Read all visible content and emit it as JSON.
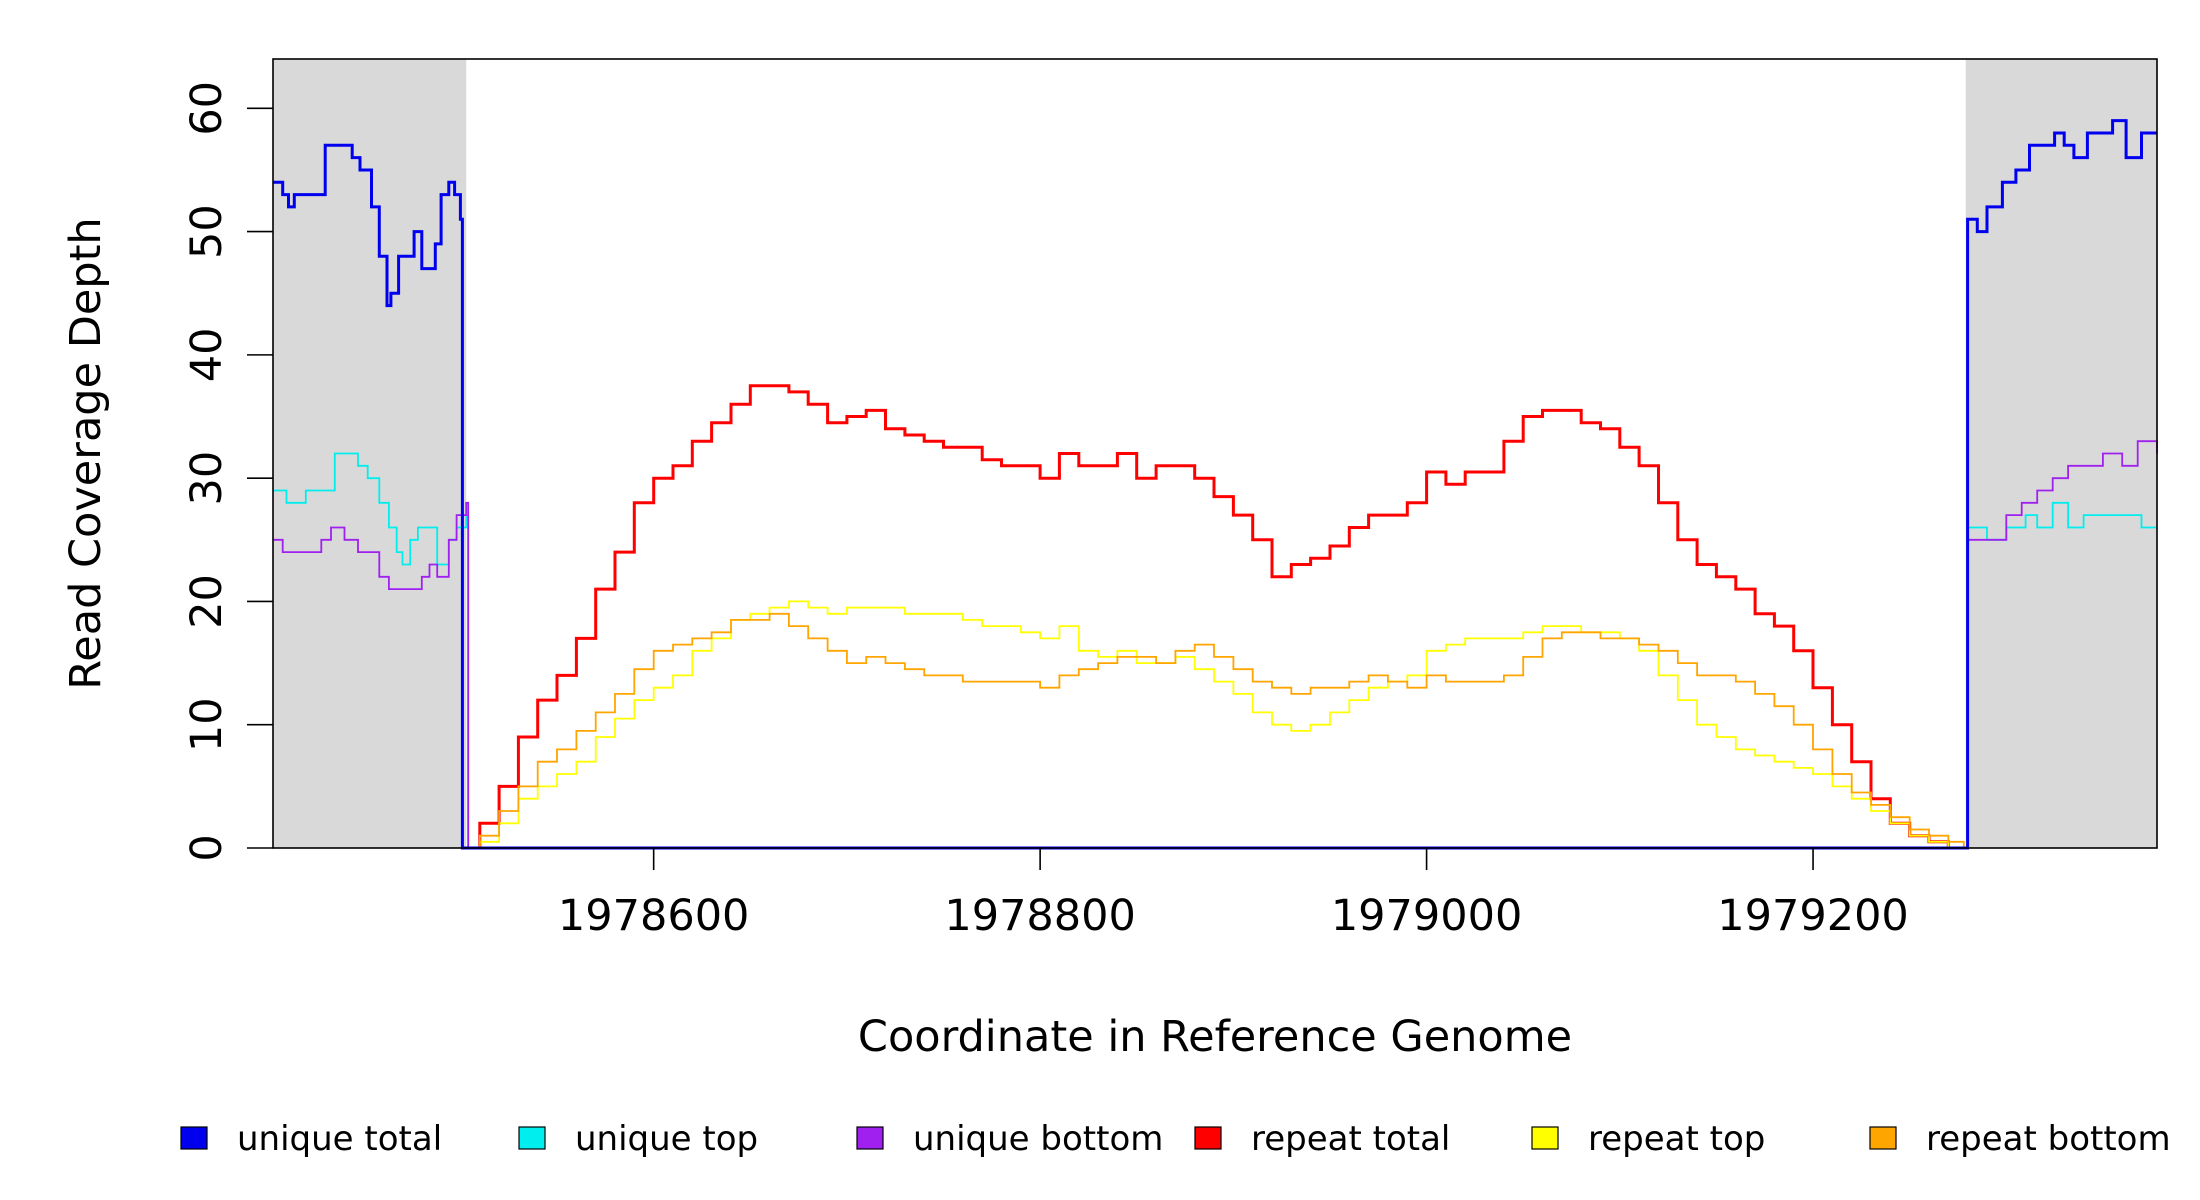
{
  "chart_data": {
    "type": "line",
    "title": "",
    "xlabel": "Coordinate in Reference Genome",
    "ylabel": "Read Coverage Depth",
    "xlim": [
      1978403,
      1979378
    ],
    "ylim": [
      0,
      64
    ],
    "x_ticks": [
      1978600,
      1978800,
      1979000,
      1979200
    ],
    "y_ticks": [
      0,
      10,
      20,
      30,
      40,
      50,
      60
    ],
    "grid": false,
    "legend_position": "bottom",
    "shaded_regions": [
      {
        "x": [
          1978403,
          1978503
        ],
        "color": "#d9d9d9"
      },
      {
        "x": [
          1979279,
          1979378
        ],
        "color": "#d9d9d9"
      }
    ],
    "series": [
      {
        "name": "unique total",
        "color": "#0000ee",
        "x": [
          1978403,
          1978408,
          1978411,
          1978414,
          1978418,
          1978425,
          1978430,
          1978438,
          1978444,
          1978448,
          1978454,
          1978458,
          1978462,
          1978464,
          1978468,
          1978471,
          1978476,
          1978480,
          1978484,
          1978487,
          1978490,
          1978494,
          1978497,
          1978500,
          1978501,
          1978503,
          1978504,
          1979279,
          1979280,
          1979285,
          1979290,
          1979298,
          1979305,
          1979312,
          1979318,
          1979325,
          1979330,
          1979335,
          1979342,
          1979348,
          1979355,
          1979362,
          1979370,
          1979378
        ],
        "y": [
          54,
          53,
          52,
          53,
          53,
          53,
          57,
          57,
          56,
          55,
          52,
          48,
          44,
          45,
          48,
          48,
          50,
          47,
          47,
          49,
          53,
          54,
          53,
          51,
          0,
          0,
          0,
          0,
          51,
          50,
          52,
          54,
          55,
          57,
          57,
          58,
          57,
          56,
          58,
          58,
          59,
          56,
          58,
          58
        ]
      },
      {
        "name": "unique top",
        "color": "#00eeee",
        "x": [
          1978403,
          1978410,
          1978420,
          1978428,
          1978435,
          1978440,
          1978447,
          1978452,
          1978458,
          1978463,
          1978467,
          1978470,
          1978474,
          1978478,
          1978484,
          1978488,
          1978494,
          1978498,
          1978501,
          1978503,
          1978504,
          1979279,
          1979280,
          1979290,
          1979300,
          1979310,
          1979316,
          1979324,
          1979332,
          1979340,
          1979350,
          1979360,
          1979370,
          1979378
        ],
        "y": [
          29,
          28,
          29,
          29,
          32,
          32,
          31,
          30,
          28,
          26,
          24,
          23,
          25,
          26,
          26,
          23,
          25,
          26,
          26,
          27,
          0,
          0,
          26,
          25,
          26,
          27,
          26,
          28,
          26,
          27,
          27,
          27,
          26,
          26
        ]
      },
      {
        "name": "unique bottom",
        "color": "#a020f0",
        "x": [
          1978403,
          1978408,
          1978412,
          1978420,
          1978428,
          1978433,
          1978440,
          1978447,
          1978452,
          1978458,
          1978463,
          1978468,
          1978474,
          1978480,
          1978484,
          1978488,
          1978494,
          1978498,
          1978501,
          1978503,
          1978504,
          1979279,
          1979280,
          1979290,
          1979300,
          1979308,
          1979316,
          1979324,
          1979332,
          1979340,
          1979350,
          1979360,
          1979368,
          1979378
        ],
        "y": [
          25,
          24,
          24,
          24,
          25,
          26,
          25,
          24,
          24,
          22,
          21,
          21,
          21,
          22,
          23,
          22,
          25,
          27,
          27,
          28,
          0,
          0,
          25,
          25,
          27,
          28,
          29,
          30,
          31,
          31,
          32,
          31,
          33,
          32
        ]
      },
      {
        "name": "repeat total",
        "color": "#ff0000",
        "x": [
          1978503,
          1978510,
          1978520,
          1978530,
          1978540,
          1978550,
          1978560,
          1978570,
          1978580,
          1978590,
          1978600,
          1978610,
          1978620,
          1978630,
          1978640,
          1978650,
          1978660,
          1978670,
          1978680,
          1978690,
          1978700,
          1978710,
          1978720,
          1978730,
          1978740,
          1978750,
          1978760,
          1978770,
          1978780,
          1978790,
          1978800,
          1978810,
          1978820,
          1978830,
          1978840,
          1978850,
          1978860,
          1978870,
          1978880,
          1978890,
          1978900,
          1978910,
          1978920,
          1978930,
          1978940,
          1978950,
          1978960,
          1978970,
          1978980,
          1978990,
          1979000,
          1979010,
          1979020,
          1979030,
          1979040,
          1979050,
          1979060,
          1979070,
          1979080,
          1979090,
          1979100,
          1979110,
          1979120,
          1979130,
          1979140,
          1979150,
          1979160,
          1979170,
          1979180,
          1979190,
          1979200,
          1979210,
          1979220,
          1979230,
          1979240,
          1979250,
          1979260,
          1979270,
          1979278,
          1979279
        ],
        "y": [
          0,
          2,
          5,
          9,
          12,
          14,
          17,
          21,
          24,
          28,
          30,
          31,
          33,
          34.5,
          36,
          37.5,
          37.5,
          37,
          36,
          34.5,
          35,
          35.5,
          34,
          33.5,
          33,
          32.5,
          32.5,
          31.5,
          31,
          31,
          30,
          32,
          31,
          31,
          32,
          30,
          31,
          31,
          30,
          28.5,
          27,
          25,
          22,
          23,
          23.5,
          24.5,
          26,
          27,
          27,
          28,
          30.5,
          29.5,
          30.5,
          30.5,
          33,
          35,
          35.5,
          35.5,
          34.5,
          34,
          32.5,
          31,
          28,
          25,
          23,
          22,
          21,
          19,
          18,
          16,
          13,
          10,
          7,
          4,
          2,
          1,
          0.5,
          0,
          0,
          0
        ]
      },
      {
        "name": "repeat top",
        "color": "#ffff00",
        "x": [
          1978503,
          1978510,
          1978520,
          1978530,
          1978540,
          1978550,
          1978560,
          1978570,
          1978580,
          1978590,
          1978600,
          1978610,
          1978620,
          1978630,
          1978640,
          1978650,
          1978660,
          1978670,
          1978680,
          1978690,
          1978700,
          1978710,
          1978720,
          1978730,
          1978740,
          1978750,
          1978760,
          1978770,
          1978780,
          1978790,
          1978800,
          1978810,
          1978820,
          1978830,
          1978840,
          1978850,
          1978860,
          1978870,
          1978880,
          1978890,
          1978900,
          1978910,
          1978920,
          1978930,
          1978940,
          1978950,
          1978960,
          1978970,
          1978980,
          1978990,
          1979000,
          1979010,
          1979020,
          1979030,
          1979040,
          1979050,
          1979060,
          1979070,
          1979080,
          1979090,
          1979100,
          1979110,
          1979120,
          1979130,
          1979140,
          1979150,
          1979160,
          1979170,
          1979180,
          1979190,
          1979200,
          1979210,
          1979220,
          1979230,
          1979240,
          1979250,
          1979260,
          1979270,
          1979278,
          1979279
        ],
        "y": [
          0,
          0.5,
          2,
          4,
          5,
          6,
          7,
          9,
          10.5,
          12,
          13,
          14,
          16,
          17,
          18.5,
          19,
          19.5,
          20,
          19.5,
          19,
          19.5,
          19.5,
          19.5,
          19,
          19,
          19,
          18.5,
          18,
          18,
          17.5,
          17,
          18,
          16,
          15.5,
          16,
          15,
          15,
          15.5,
          14.5,
          13.5,
          12.5,
          11,
          10,
          9.5,
          10,
          11,
          12,
          13,
          13.5,
          14,
          16,
          16.5,
          17,
          17,
          17,
          17.5,
          18,
          18,
          17.5,
          17.5,
          17,
          16,
          14,
          12,
          10,
          9,
          8,
          7.5,
          7,
          6.5,
          6,
          5,
          4,
          3,
          2,
          1,
          0.5,
          0,
          0,
          0
        ]
      },
      {
        "name": "repeat bottom",
        "color": "#ffa500",
        "x": [
          1978503,
          1978510,
          1978520,
          1978530,
          1978540,
          1978550,
          1978560,
          1978570,
          1978580,
          1978590,
          1978600,
          1978610,
          1978620,
          1978630,
          1978640,
          1978650,
          1978660,
          1978670,
          1978680,
          1978690,
          1978700,
          1978710,
          1978720,
          1978730,
          1978740,
          1978750,
          1978760,
          1978770,
          1978780,
          1978790,
          1978800,
          1978810,
          1978820,
          1978830,
          1978840,
          1978850,
          1978860,
          1978870,
          1978880,
          1978890,
          1978900,
          1978910,
          1978920,
          1978930,
          1978940,
          1978950,
          1978960,
          1978970,
          1978980,
          1978990,
          1979000,
          1979010,
          1979020,
          1979030,
          1979040,
          1979050,
          1979060,
          1979070,
          1979080,
          1979090,
          1979100,
          1979110,
          1979120,
          1979130,
          1979140,
          1979150,
          1979160,
          1979170,
          1979180,
          1979190,
          1979200,
          1979210,
          1979220,
          1979230,
          1979240,
          1979250,
          1979260,
          1979270,
          1979278,
          1979279
        ],
        "y": [
          0,
          1,
          3,
          5,
          7,
          8,
          9.5,
          11,
          12.5,
          14.5,
          16,
          16.5,
          17,
          17.5,
          18.5,
          18.5,
          19,
          18,
          17,
          16,
          15,
          15.5,
          15,
          14.5,
          14,
          14,
          13.5,
          13.5,
          13.5,
          13.5,
          13,
          14,
          14.5,
          15,
          15.5,
          15.5,
          15,
          16,
          16.5,
          15.5,
          14.5,
          13.5,
          13,
          12.5,
          13,
          13,
          13.5,
          14,
          13.5,
          13,
          14,
          13.5,
          13.5,
          13.5,
          14,
          15.5,
          17,
          17.5,
          17.5,
          17,
          17,
          16.5,
          16,
          15,
          14,
          14,
          13.5,
          12.5,
          11.5,
          10,
          8,
          6,
          4.5,
          3.5,
          2.5,
          1.5,
          1,
          0.5,
          0,
          0
        ]
      }
    ]
  }
}
